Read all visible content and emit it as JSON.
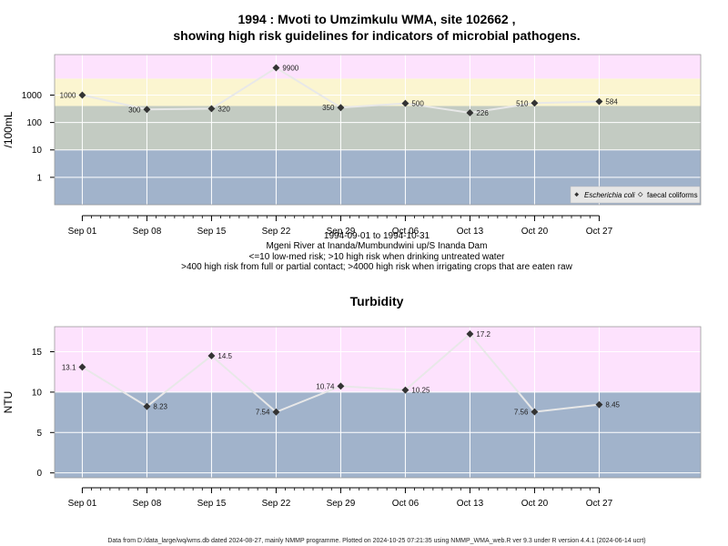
{
  "page": {
    "footer": "Data from D:/data_large/wq/wms.db dated 2024-08-27, mainly NMMP programme. Plotted on 2024-10-25 07:21:35 using NMMP_WMA_web.R ver 9.3 under R version 4.4.1 (2024-06-14 ucrt)"
  },
  "chart_data": [
    {
      "type": "line",
      "title": "1994 : Mvoti to Umzimkulu WMA, site 102662 ,",
      "title2": "showing high risk guidelines for indicators of microbial pathogens.",
      "xlabel": "",
      "ylabel": "/100mL",
      "y_scale": "log10",
      "ylim": [
        0.1,
        30000
      ],
      "yticks": [
        1,
        10,
        100,
        1000
      ],
      "ytick_labels": [
        "1",
        "10",
        "100",
        "1000"
      ],
      "x_tick_labels": [
        "Sep 01",
        "Sep 08",
        "Sep 15",
        "Sep 22",
        "Sep 29",
        "Oct 06",
        "Oct 13",
        "Oct 20",
        "Oct 27"
      ],
      "x_range": [
        "1994-08-29",
        "1994-11-07"
      ],
      "grid": true,
      "bands": [
        {
          "from": 0.1,
          "to": 10,
          "color": "#a1b3cb"
        },
        {
          "from": 10,
          "to": 400,
          "color": "#c3cbc2"
        },
        {
          "from": 400,
          "to": 4000,
          "color": "#fbf5d0"
        },
        {
          "from": 4000,
          "to": 30000,
          "color": "#fde2fd"
        }
      ],
      "series": [
        {
          "name": "Escherichia coli",
          "x": [
            "1994-09-01",
            "1994-09-08",
            "1994-09-15",
            "1994-09-22",
            "1994-09-29",
            "1994-10-06",
            "1994-10-13",
            "1994-10-20",
            "1994-10-27"
          ],
          "y": [
            1000,
            300,
            320,
            9900,
            350,
            500,
            226,
            510,
            584
          ],
          "labels": [
            "1000",
            "300",
            "320",
            "9900",
            "350",
            "500",
            "226",
            "510",
            "584"
          ]
        }
      ],
      "legend": {
        "position": "bottom-right",
        "entries": [
          "Escherichia coli",
          "faecal coliforms"
        ]
      },
      "caption_lines": [
        "1994-09-01 to 1994-10-31",
        "Mgeni River at Inanda/Mumbundwini up/S Inanda Dam",
        "<=10 low-med risk; >10 high risk when drinking untreated water",
        ">400 high risk from full or partial contact; >4000 high risk when irrigating crops that are eaten raw"
      ]
    },
    {
      "type": "line",
      "title": "Turbidity",
      "xlabel": "",
      "ylabel": "NTU",
      "ylim": [
        -0.6,
        18.1
      ],
      "yticks": [
        0,
        5,
        10,
        15
      ],
      "ytick_labels": [
        "0",
        "5",
        "10",
        "15"
      ],
      "x_tick_labels": [
        "Sep 01",
        "Sep 08",
        "Sep 15",
        "Sep 22",
        "Sep 29",
        "Oct 06",
        "Oct 13",
        "Oct 20",
        "Oct 27"
      ],
      "x_range": [
        "1994-08-29",
        "1994-11-07"
      ],
      "grid": true,
      "bands": [
        {
          "from": -0.6,
          "to": 10,
          "color": "#a1b3cb"
        },
        {
          "from": 10,
          "to": 18.1,
          "color": "#fde2fd"
        }
      ],
      "series": [
        {
          "name": "",
          "x": [
            "1994-09-01",
            "1994-09-08",
            "1994-09-15",
            "1994-09-22",
            "1994-09-29",
            "1994-10-06",
            "1994-10-13",
            "1994-10-20",
            "1994-10-27"
          ],
          "y": [
            13.1,
            8.23,
            14.5,
            7.54,
            10.74,
            10.25,
            17.2,
            7.56,
            8.45
          ],
          "labels": [
            "13.1",
            "8.23",
            "14.5",
            "7.54",
            "10.74",
            "10.25",
            "17.2",
            "7.56",
            "8.45"
          ]
        }
      ]
    }
  ]
}
